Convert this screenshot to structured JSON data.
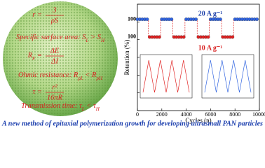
{
  "formulas": [
    {
      "lhs": "r =",
      "num": "3",
      "den": "ρS"
    },
    {
      "parts": [
        {
          "t": "Specific surface area: S"
        },
        {
          "t": "L",
          "sub": true
        },
        {
          "t": " > S"
        },
        {
          "t": "H",
          "sub": true
        }
      ]
    },
    {
      "lhs": "R",
      "lhs_sub": "F",
      "eq": " =",
      "num": "ΔE",
      "den": "ΔI"
    },
    {
      "parts": [
        {
          "t": "Ohmic resistance: R"
        },
        {
          "t": "pL",
          "sub": true
        },
        {
          "t": " < R"
        },
        {
          "t": "pH",
          "sub": true
        }
      ]
    },
    {
      "lhs": "τ =",
      "num": "r²",
      "den": "16πR"
    },
    {
      "parts": [
        {
          "t": "Transmission time: τ"
        },
        {
          "t": "L",
          "sub": true
        },
        {
          "t": " < τ"
        },
        {
          "t": "H",
          "sub": true
        }
      ]
    }
  ],
  "caption": "A new method of epitaxial polymerization growth for developing ultrasmall PAN particles",
  "chart_data": {
    "type": "scatter",
    "xlabel": "Cycles (n)",
    "ylabel": "Retention (%)",
    "xlim": [
      0,
      10000
    ],
    "xticks": [
      0,
      2000,
      4000,
      6000,
      8000,
      10000
    ],
    "ylim": [
      0,
      120
    ],
    "yticks": [
      0,
      20,
      40,
      60,
      80,
      100,
      120
    ],
    "annotations": [
      {
        "text": "20 A g⁻¹",
        "color": "#1a3ea8"
      },
      {
        "text": "10 A g⁻¹",
        "color": "#d81e1e"
      },
      {
        "text": "100",
        "color": "#000000"
      },
      {
        "text": "100",
        "color": "#000000"
      }
    ],
    "series": [
      {
        "name": "20 A g⁻¹",
        "color": "#2f63e0",
        "x": [
          0,
          200,
          400,
          600,
          800,
          2000,
          2200,
          2400,
          2600,
          2800,
          4000,
          4200,
          4400,
          4600,
          4800,
          6000,
          6200,
          6400,
          6600,
          6800,
          8000,
          8200,
          8400,
          8600,
          8800,
          9000,
          9200,
          9400,
          9600,
          9800
        ],
        "values": [
          103,
          103,
          103,
          103,
          103,
          103,
          103,
          103,
          103,
          103,
          103,
          103,
          103,
          103,
          103,
          103,
          103,
          103,
          103,
          103,
          103,
          103,
          103,
          103,
          103,
          103,
          103,
          103,
          103,
          103
        ]
      },
      {
        "name": "10 A g⁻¹",
        "color": "#e02020",
        "x": [
          1000,
          1200,
          1400,
          1600,
          1800,
          3000,
          3200,
          3400,
          3600,
          3800,
          5000,
          5200,
          5400,
          5600,
          5800,
          7000,
          7200,
          7400,
          7600,
          7800
        ],
        "values": [
          83,
          83,
          83,
          83,
          83,
          83,
          83,
          83,
          83,
          83,
          83,
          83,
          83,
          83,
          83,
          83,
          83,
          83,
          83,
          83
        ]
      }
    ]
  }
}
